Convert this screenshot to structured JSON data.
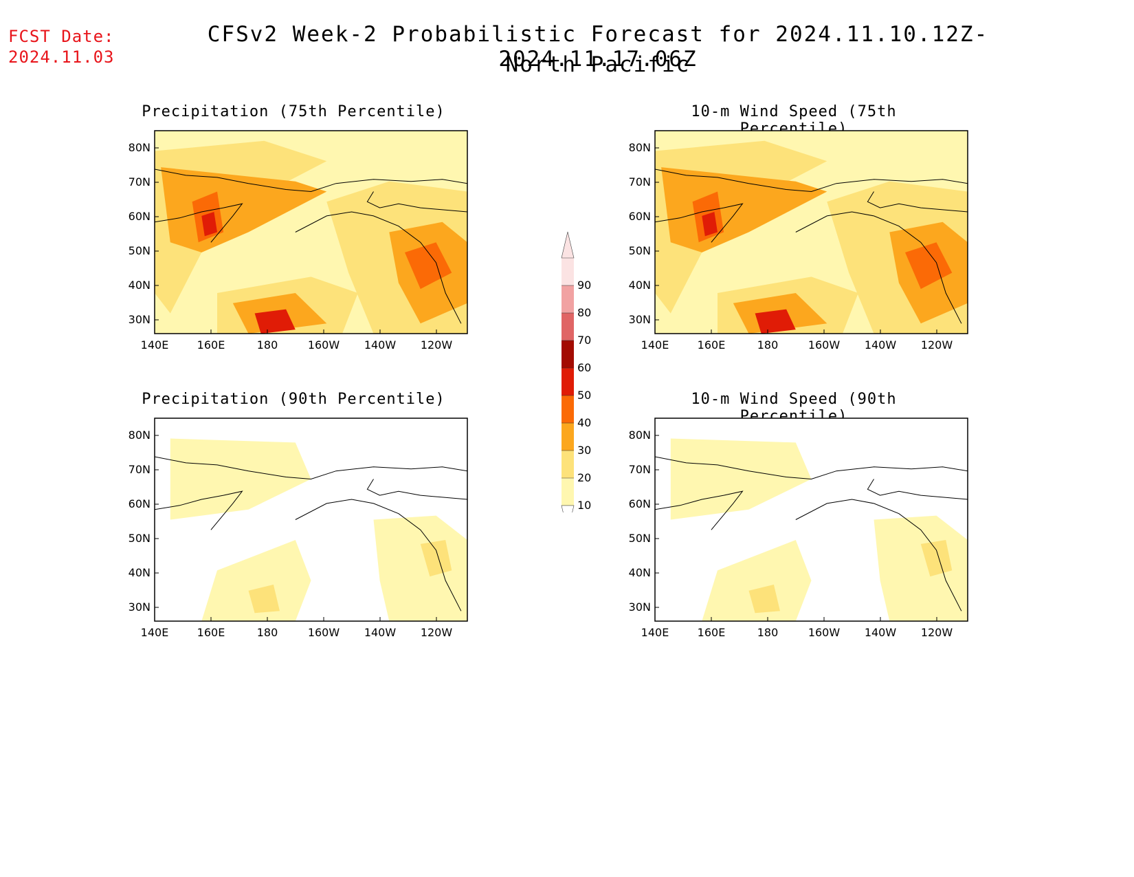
{
  "header": {
    "fcst_label": "FCST Date:",
    "fcst_date": "2024.11.03",
    "title": "CFSv2 Week-2 Probabilistic Forecast for 2024.11.10.12Z-2024.11.17.06Z",
    "subtitle": "North Pacific"
  },
  "axes": {
    "lat_labels": [
      "80N",
      "70N",
      "60N",
      "50N",
      "40N",
      "30N"
    ],
    "lon_labels": [
      "140E",
      "160E",
      "180",
      "160W",
      "140W",
      "120W"
    ]
  },
  "panels": [
    {
      "id": "precip75",
      "title": "Precipitation (75th Percentile)",
      "intensity": "high"
    },
    {
      "id": "wind75",
      "title": "10-m Wind Speed (75th Percentile)",
      "intensity": "high"
    },
    {
      "id": "precip90",
      "title": "Precipitation (90th Percentile)",
      "intensity": "low"
    },
    {
      "id": "wind90",
      "title": "10-m Wind Speed (90th Percentile)",
      "intensity": "low"
    }
  ],
  "colorbar": {
    "levels": [
      "10",
      "20",
      "30",
      "40",
      "50",
      "60",
      "70",
      "80",
      "90"
    ],
    "colors": [
      "#fff7b0",
      "#fde27a",
      "#fca71e",
      "#fb6a06",
      "#e01c06",
      "#a30b02",
      "#e06565",
      "#f1a2a2",
      "#fbe3e3"
    ]
  }
}
